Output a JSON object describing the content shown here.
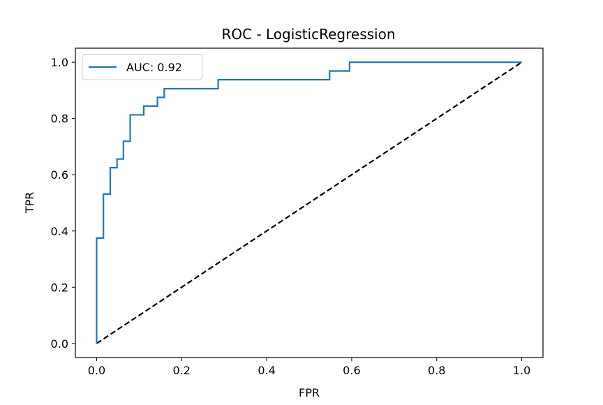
{
  "chart_data": {
    "type": "line",
    "title": "ROC - LogisticRegression",
    "xlabel": "FPR",
    "ylabel": "TPR",
    "xlim": [
      -0.05,
      1.05
    ],
    "ylim": [
      -0.05,
      1.05
    ],
    "xticks": [
      0.0,
      0.2,
      0.4,
      0.6,
      0.8,
      1.0
    ],
    "yticks": [
      0.0,
      0.2,
      0.4,
      0.6,
      0.8,
      1.0
    ],
    "xtick_labels": [
      "0.0",
      "0.2",
      "0.4",
      "0.6",
      "0.8",
      "1.0"
    ],
    "ytick_labels": [
      "0.0",
      "0.2",
      "0.4",
      "0.6",
      "0.8",
      "1.0"
    ],
    "grid": false,
    "legend_position": "top-left",
    "series": [
      {
        "name": "AUC: 0.92",
        "color": "#1f77b4",
        "style": "solid",
        "step": true,
        "x": [
          0.0,
          0.0,
          0.016,
          0.016,
          0.032,
          0.032,
          0.048,
          0.048,
          0.063,
          0.063,
          0.079,
          0.079,
          0.111,
          0.111,
          0.143,
          0.143,
          0.159,
          0.159,
          0.286,
          0.286,
          0.548,
          0.548,
          0.595,
          0.595,
          1.0
        ],
        "y": [
          0.0,
          0.375,
          0.375,
          0.531,
          0.531,
          0.625,
          0.625,
          0.656,
          0.656,
          0.719,
          0.719,
          0.813,
          0.813,
          0.844,
          0.844,
          0.875,
          0.875,
          0.906,
          0.906,
          0.938,
          0.938,
          0.969,
          0.969,
          1.0,
          1.0
        ]
      },
      {
        "name": "",
        "color": "#000000",
        "style": "dashed",
        "x": [
          0.0,
          1.0
        ],
        "y": [
          0.0,
          1.0
        ]
      }
    ]
  }
}
